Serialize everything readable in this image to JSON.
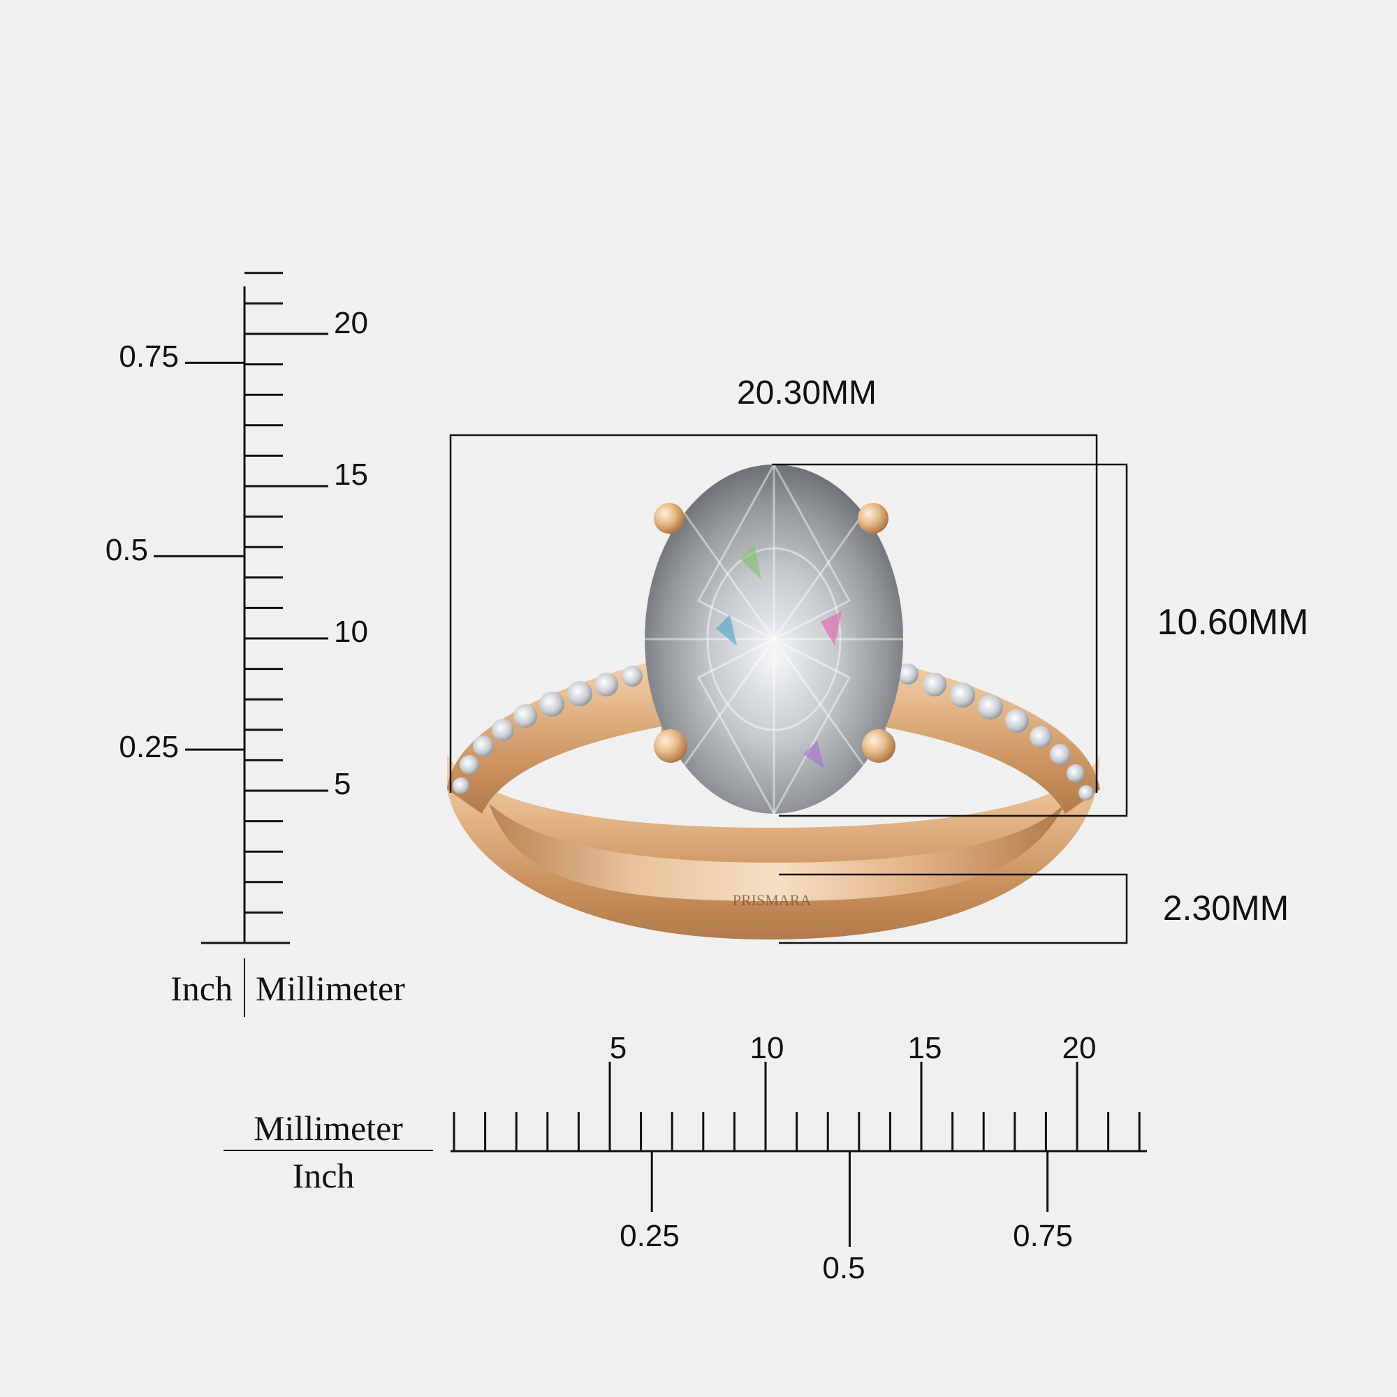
{
  "dimensions": {
    "width_label": "20.30MM",
    "height_label": "10.60MM",
    "band_label": "2.30MM"
  },
  "brand_engraving": "PRISMARA",
  "vertical_ruler": {
    "mm_max": 22,
    "mm_labels": [
      "5",
      "10",
      "15",
      "20"
    ],
    "inch_labels": [
      "0.25",
      "0.5",
      "0.75"
    ],
    "legend_left": "Inch",
    "legend_right": "Millimeter"
  },
  "horizontal_ruler": {
    "mm_max": 22,
    "mm_labels": [
      "5",
      "10",
      "15",
      "20"
    ],
    "inch_labels": [
      "0.25",
      "0.5",
      "0.75"
    ],
    "legend_top": "Millimeter",
    "legend_bottom": "Inch"
  },
  "colors": {
    "background": "#f0f0f0",
    "gold": "#d9a878",
    "ink": "#111111"
  }
}
